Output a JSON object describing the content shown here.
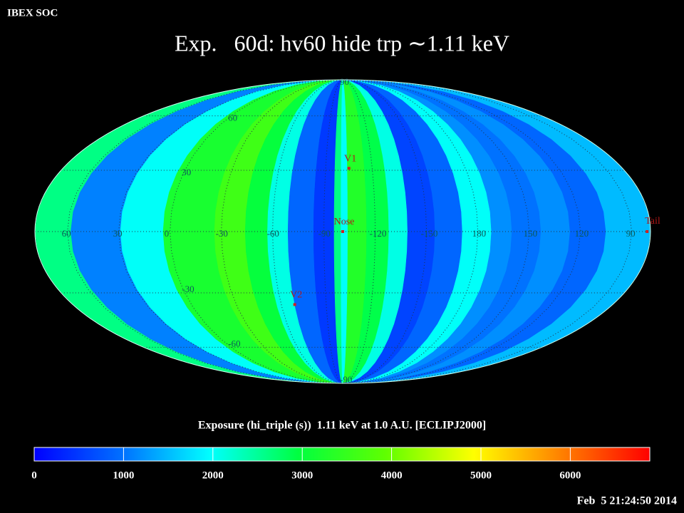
{
  "header": {
    "source": "IBEX SOC",
    "title": "Exp.   60d: hv60 hide trp ∼1.11 keV",
    "timestamp": "Feb  5 21:24:50 2014"
  },
  "map": {
    "projection": "mollweide",
    "center_lon": -101,
    "lon_ticks": [
      60,
      30,
      0,
      -30,
      -60,
      -90,
      -120,
      -150,
      180,
      150,
      120,
      90
    ],
    "lat_ticks": [
      90,
      60,
      30,
      -30,
      -60,
      -90
    ],
    "stripes": {
      "lon_edges": [
        79,
        58,
        29,
        4,
        -26,
        -44,
        -57,
        -69,
        -84,
        -96,
        -100,
        -104,
        -115,
        -128,
        -139,
        -155,
        -171,
        172,
        160,
        143,
        126,
        105,
        79
      ],
      "values": [
        2600,
        1100,
        2000,
        3200,
        3600,
        3000,
        2100,
        900,
        500,
        2600,
        2000,
        3300,
        2900,
        2100,
        600,
        900,
        2000,
        1200,
        1000,
        1200,
        900,
        1500
      ]
    },
    "markers": [
      {
        "label": "V1",
        "lon": -105,
        "lat": 31
      },
      {
        "label": "Nose",
        "lon": -101,
        "lat": 0
      },
      {
        "label": "V2",
        "lon": -69,
        "lat": -36
      },
      {
        "label": "Tail",
        "lon": 81,
        "lat": 0
      }
    ]
  },
  "colorbar": {
    "label": "Exposure (hi_triple (s))  1.11 keV at 1.0 A.U. [ECLIPJ2000]",
    "clim": [
      0,
      6890
    ],
    "ticks": [
      0,
      1000,
      2000,
      3000,
      4000,
      5000,
      6000
    ],
    "colors": [
      "#0000ff",
      "#0070ff",
      "#00ffff",
      "#00ff40",
      "#60ff00",
      "#ffff00",
      "#ff8000",
      "#ff0000"
    ]
  }
}
